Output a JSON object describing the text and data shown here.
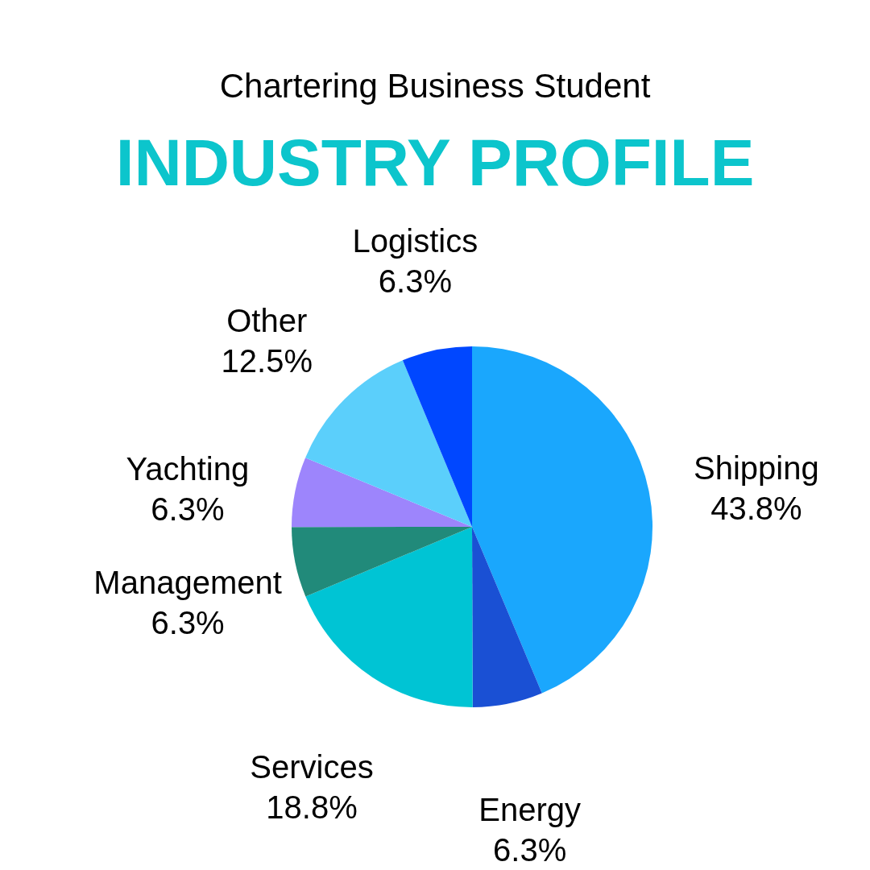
{
  "chart_data": {
    "type": "pie",
    "subtitle": "Chartering Business Student",
    "title": "INDUSTRY PROFILE",
    "categories": [
      "Shipping",
      "Energy",
      "Services",
      "Management",
      "Yachting",
      "Other",
      "Logistics"
    ],
    "values": [
      43.8,
      6.3,
      18.8,
      6.3,
      6.3,
      12.5,
      6.3
    ],
    "value_labels": [
      "43.8%",
      "6.3%",
      "18.8%",
      "6.3%",
      "6.3%",
      "12.5%",
      "6.3%"
    ],
    "colors": [
      "#1aa7fd",
      "#1a50d4",
      "#00c4d4",
      "#218a7a",
      "#9d85fc",
      "#5bcffb",
      "#0047ff"
    ]
  }
}
